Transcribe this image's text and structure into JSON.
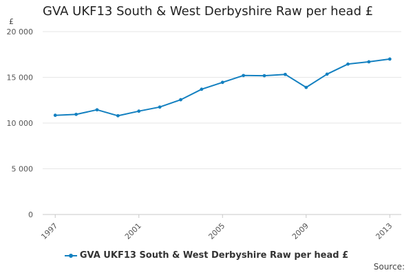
{
  "chart_data": {
    "type": "line",
    "title": "GVA UKF13 South & West Derbyshire Raw per head £",
    "ylabel": "£",
    "xlabel": "",
    "x": [
      1997,
      1998,
      1999,
      2000,
      2001,
      2002,
      2003,
      2004,
      2005,
      2006,
      2007,
      2008,
      2009,
      2010,
      2011,
      2012,
      2013
    ],
    "x_tick_labels": [
      "1997",
      "2001",
      "2005",
      "2009",
      "2013"
    ],
    "x_tick_values": [
      1997,
      2001,
      2005,
      2009,
      2013
    ],
    "y_tick_labels": [
      "0",
      "5 000",
      "10 000",
      "15 000",
      "20 000"
    ],
    "y_tick_values": [
      0,
      5000,
      10000,
      15000,
      20000
    ],
    "ylim": [
      0,
      20000
    ],
    "grid": true,
    "legend_position": "bottom",
    "series": [
      {
        "name": "GVA UKF13 South & West Derbyshire Raw per head £",
        "color": "#1380c0",
        "values": [
          10850,
          10950,
          11450,
          10800,
          11300,
          11750,
          12550,
          13700,
          14450,
          15200,
          15180,
          15320,
          13900,
          15350,
          16450,
          16700,
          17000
        ]
      }
    ]
  },
  "source_label": "Source:"
}
